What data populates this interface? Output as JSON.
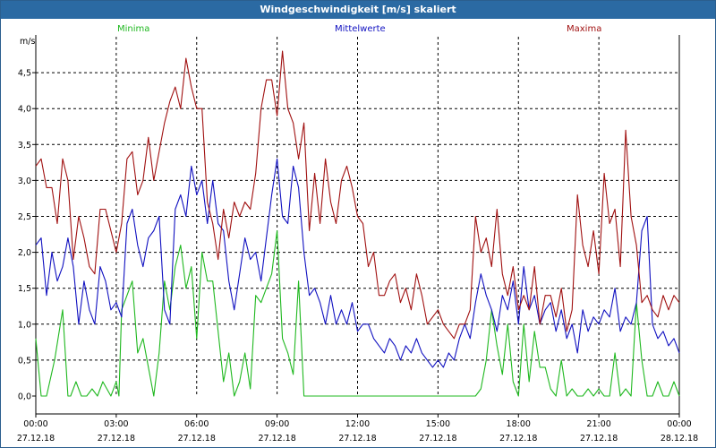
{
  "window": {
    "title": "Windgeschwindigkeit [m/s] skaliert"
  },
  "colors": {
    "title_bg": "#2b6aa3",
    "minima": "#1fb81f",
    "mittelwerte": "#1010c0",
    "maxima": "#a01010"
  },
  "chart_data": {
    "type": "line",
    "title": "Windgeschwindigkeit [m/s] skaliert",
    "ylabel": "m/s",
    "xlabel": "",
    "ylim": [
      0,
      5
    ],
    "xlim": [
      0,
      24
    ],
    "grid": true,
    "legend_placement": "top",
    "yticks": [
      0.0,
      0.5,
      1.0,
      1.5,
      2.0,
      2.5,
      3.0,
      3.5,
      4.0,
      4.5
    ],
    "ytick_labels": [
      "0,0",
      "0,5",
      "1,0",
      "1,5",
      "2,0",
      "2,5",
      "3,0",
      "3,5",
      "4,0",
      "4,5"
    ],
    "xticks": [
      0,
      3,
      6,
      9,
      12,
      15,
      18,
      21,
      24
    ],
    "xtick_times": [
      "00:00",
      "03:00",
      "06:00",
      "09:00",
      "12:00",
      "15:00",
      "18:00",
      "21:00",
      "00:00"
    ],
    "xtick_dates": [
      "27.12.18",
      "27.12.18",
      "27.12.18",
      "27.12.18",
      "27.12.18",
      "27.12.18",
      "27.12.18",
      "27.12.18",
      "28.12.18"
    ],
    "series": [
      {
        "name": "Minima",
        "x": [
          0.0,
          0.2,
          0.4,
          0.7,
          1.0,
          1.2,
          1.3,
          1.5,
          1.7,
          1.9,
          2.1,
          2.3,
          2.5,
          2.8,
          3.0,
          3.1,
          3.2,
          3.4,
          3.6,
          3.8,
          4.0,
          4.2,
          4.4,
          4.6,
          4.8,
          5.0,
          5.2,
          5.4,
          5.6,
          5.8,
          6.0,
          6.2,
          6.4,
          6.6,
          6.8,
          7.0,
          7.2,
          7.4,
          7.6,
          7.8,
          8.0,
          8.2,
          8.4,
          8.6,
          8.8,
          9.0,
          9.2,
          9.4,
          9.6,
          9.8,
          10.0,
          10.5,
          11.0,
          12.0,
          13.0,
          14.0,
          15.0,
          16.0,
          16.4,
          16.6,
          16.8,
          17.0,
          17.2,
          17.4,
          17.6,
          17.8,
          18.0,
          18.2,
          18.4,
          18.6,
          18.8,
          19.0,
          19.2,
          19.4,
          19.6,
          19.8,
          20.0,
          20.2,
          20.4,
          20.6,
          20.8,
          21.0,
          21.2,
          21.4,
          21.6,
          21.8,
          22.0,
          22.2,
          22.4,
          22.6,
          22.8,
          23.0,
          23.2,
          23.4,
          23.6,
          23.8,
          24.0
        ],
        "values": [
          0.8,
          0.0,
          0.0,
          0.5,
          1.2,
          0.0,
          0.0,
          0.2,
          0.0,
          0.0,
          0.1,
          0.0,
          0.2,
          0.0,
          0.2,
          0.0,
          1.2,
          1.4,
          1.6,
          0.6,
          0.8,
          0.4,
          0.0,
          0.6,
          1.6,
          1.2,
          1.8,
          2.1,
          1.5,
          1.8,
          0.8,
          2.0,
          1.6,
          1.6,
          0.9,
          0.2,
          0.6,
          0.0,
          0.2,
          0.6,
          0.1,
          1.4,
          1.3,
          1.5,
          1.7,
          2.3,
          0.8,
          0.6,
          0.3,
          1.6,
          0.0,
          0.0,
          0.0,
          0.0,
          0.0,
          0.0,
          0.0,
          0.0,
          0.0,
          0.1,
          0.5,
          1.2,
          0.7,
          0.3,
          1.0,
          0.2,
          0.0,
          1.0,
          0.2,
          0.9,
          0.4,
          0.4,
          0.1,
          0.0,
          0.5,
          0.0,
          0.1,
          0.0,
          0.0,
          0.1,
          0.0,
          0.1,
          0.0,
          0.0,
          0.6,
          0.0,
          0.1,
          0.0,
          1.3,
          0.5,
          0.0,
          0.0,
          0.2,
          0.0,
          0.0,
          0.2,
          0.0
        ]
      },
      {
        "name": "Mittelwerte",
        "x": [
          0.0,
          0.2,
          0.4,
          0.6,
          0.8,
          1.0,
          1.2,
          1.4,
          1.6,
          1.8,
          2.0,
          2.2,
          2.4,
          2.6,
          2.8,
          3.0,
          3.2,
          3.4,
          3.6,
          3.8,
          4.0,
          4.2,
          4.4,
          4.6,
          4.8,
          5.0,
          5.2,
          5.4,
          5.6,
          5.8,
          6.0,
          6.2,
          6.4,
          6.6,
          6.8,
          7.0,
          7.2,
          7.4,
          7.6,
          7.8,
          8.0,
          8.2,
          8.4,
          8.6,
          8.8,
          9.0,
          9.2,
          9.4,
          9.6,
          9.8,
          10.0,
          10.2,
          10.4,
          10.6,
          10.8,
          11.0,
          11.2,
          11.4,
          11.6,
          11.8,
          12.0,
          12.2,
          12.4,
          12.6,
          12.8,
          13.0,
          13.2,
          13.4,
          13.6,
          13.8,
          14.0,
          14.2,
          14.4,
          14.6,
          14.8,
          15.0,
          15.2,
          15.4,
          15.6,
          15.8,
          16.0,
          16.2,
          16.4,
          16.6,
          16.8,
          17.0,
          17.2,
          17.4,
          17.6,
          17.8,
          18.0,
          18.2,
          18.4,
          18.6,
          18.8,
          19.0,
          19.2,
          19.4,
          19.6,
          19.8,
          20.0,
          20.2,
          20.4,
          20.6,
          20.8,
          21.0,
          21.2,
          21.4,
          21.6,
          21.8,
          22.0,
          22.2,
          22.4,
          22.6,
          22.8,
          23.0,
          23.2,
          23.4,
          23.6,
          23.8,
          24.0
        ],
        "values": [
          2.1,
          2.2,
          1.4,
          2.0,
          1.6,
          1.8,
          2.2,
          1.8,
          1.0,
          1.6,
          1.2,
          1.0,
          1.8,
          1.6,
          1.2,
          1.3,
          1.1,
          2.4,
          2.6,
          2.1,
          1.8,
          2.2,
          2.3,
          2.5,
          1.2,
          1.0,
          2.6,
          2.8,
          2.5,
          3.2,
          2.8,
          3.0,
          2.4,
          3.0,
          2.4,
          2.3,
          1.6,
          1.2,
          1.7,
          2.2,
          1.9,
          2.0,
          1.6,
          2.2,
          2.8,
          3.3,
          2.5,
          2.4,
          3.2,
          2.9,
          2.0,
          1.4,
          1.5,
          1.3,
          1.0,
          1.4,
          1.0,
          1.2,
          1.0,
          1.3,
          0.9,
          1.0,
          1.0,
          0.8,
          0.7,
          0.6,
          0.8,
          0.7,
          0.5,
          0.7,
          0.6,
          0.8,
          0.6,
          0.5,
          0.4,
          0.5,
          0.4,
          0.6,
          0.5,
          0.8,
          1.0,
          0.8,
          1.3,
          1.7,
          1.4,
          1.2,
          0.9,
          1.4,
          1.2,
          1.6,
          1.0,
          1.8,
          1.2,
          1.4,
          1.0,
          1.2,
          1.3,
          0.9,
          1.2,
          0.8,
          1.0,
          0.6,
          1.2,
          0.9,
          1.1,
          1.0,
          1.2,
          1.1,
          1.5,
          0.9,
          1.1,
          1.0,
          1.3,
          2.3,
          2.5,
          1.0,
          0.8,
          0.9,
          0.7,
          0.8,
          0.6
        ]
      },
      {
        "name": "Maxima",
        "x": [
          0.0,
          0.2,
          0.4,
          0.6,
          0.8,
          1.0,
          1.2,
          1.4,
          1.6,
          1.8,
          2.0,
          2.2,
          2.4,
          2.6,
          2.8,
          3.0,
          3.2,
          3.4,
          3.6,
          3.8,
          4.0,
          4.2,
          4.4,
          4.6,
          4.8,
          5.0,
          5.2,
          5.4,
          5.6,
          5.8,
          6.0,
          6.2,
          6.4,
          6.6,
          6.8,
          7.0,
          7.2,
          7.4,
          7.6,
          7.8,
          8.0,
          8.2,
          8.4,
          8.6,
          8.8,
          9.0,
          9.2,
          9.4,
          9.6,
          9.8,
          10.0,
          10.2,
          10.4,
          10.6,
          10.8,
          11.0,
          11.2,
          11.4,
          11.6,
          11.8,
          12.0,
          12.2,
          12.4,
          12.6,
          12.8,
          13.0,
          13.2,
          13.4,
          13.6,
          13.8,
          14.0,
          14.2,
          14.4,
          14.6,
          14.8,
          15.0,
          15.2,
          15.4,
          15.6,
          15.8,
          16.0,
          16.2,
          16.4,
          16.6,
          16.8,
          17.0,
          17.2,
          17.4,
          17.6,
          17.8,
          18.0,
          18.2,
          18.4,
          18.6,
          18.8,
          19.0,
          19.2,
          19.4,
          19.6,
          19.8,
          20.0,
          20.2,
          20.4,
          20.6,
          20.8,
          21.0,
          21.2,
          21.4,
          21.6,
          21.8,
          22.0,
          22.2,
          22.4,
          22.6,
          22.8,
          23.0,
          23.2,
          23.4,
          23.6,
          23.8,
          24.0
        ],
        "values": [
          3.2,
          3.3,
          2.9,
          2.9,
          2.4,
          3.3,
          3.0,
          1.9,
          2.5,
          2.2,
          1.8,
          1.7,
          2.6,
          2.6,
          2.3,
          2.0,
          2.4,
          3.3,
          3.4,
          2.8,
          3.0,
          3.6,
          3.0,
          3.4,
          3.8,
          4.1,
          4.3,
          4.0,
          4.7,
          4.3,
          4.0,
          4.0,
          2.7,
          2.4,
          1.9,
          2.6,
          2.2,
          2.7,
          2.5,
          2.7,
          2.6,
          3.1,
          4.0,
          4.4,
          4.4,
          3.9,
          4.8,
          4.0,
          3.8,
          3.3,
          3.8,
          2.3,
          3.1,
          2.4,
          3.3,
          2.7,
          2.4,
          3.0,
          3.2,
          2.9,
          2.5,
          2.4,
          1.8,
          2.0,
          1.4,
          1.4,
          1.6,
          1.7,
          1.3,
          1.5,
          1.2,
          1.7,
          1.4,
          1.0,
          1.1,
          1.2,
          1.0,
          0.9,
          0.8,
          1.0,
          1.0,
          1.2,
          2.5,
          2.0,
          2.2,
          1.8,
          2.6,
          1.7,
          1.4,
          1.8,
          1.2,
          1.4,
          1.2,
          1.8,
          1.0,
          1.4,
          1.4,
          1.1,
          1.5,
          0.9,
          1.2,
          2.8,
          2.1,
          1.8,
          2.3,
          1.7,
          3.1,
          2.4,
          2.6,
          1.8,
          3.7,
          2.5,
          2.1,
          1.3,
          1.4,
          1.2,
          1.1,
          1.4,
          1.2,
          1.4,
          1.3
        ]
      }
    ]
  }
}
